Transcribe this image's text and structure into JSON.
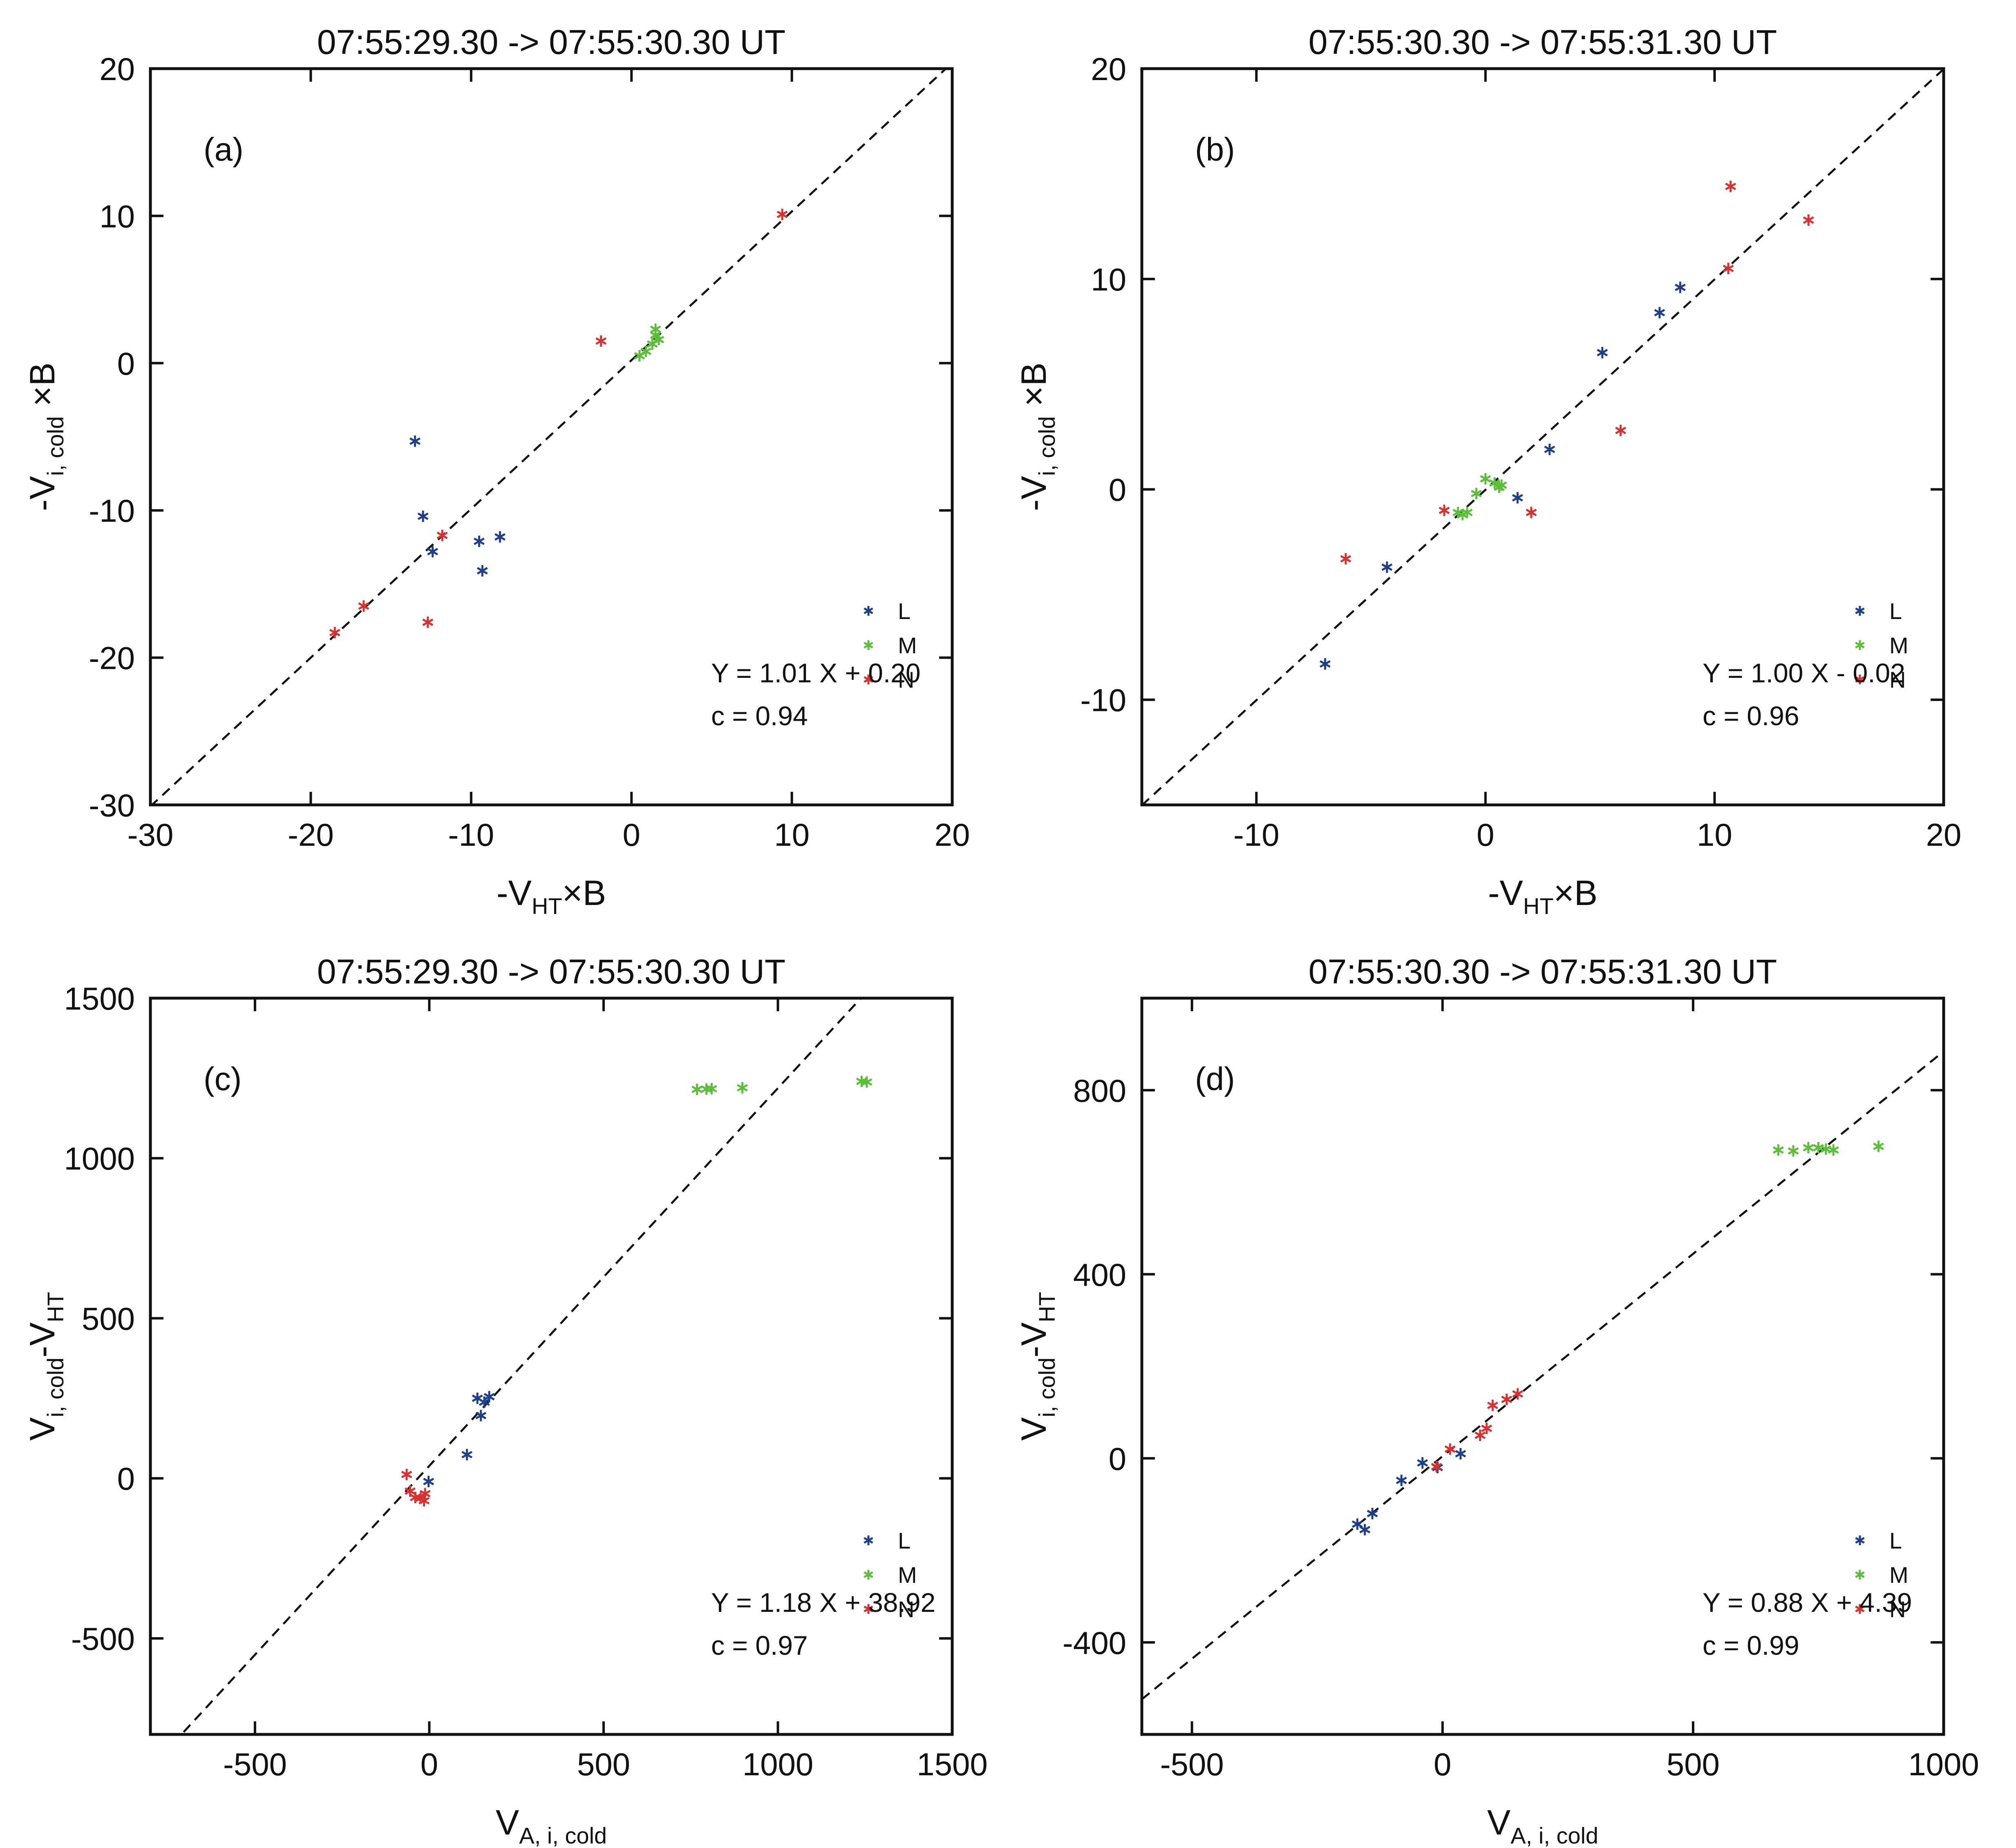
{
  "chart_data": [
    {
      "panel": "(a)",
      "type": "scatter",
      "title": "07:55:29.30 -> 07:55:30.30 UT",
      "xlabel": {
        "main": "-V",
        "sub": "HT",
        "suffix": "×B"
      },
      "ylabel": {
        "main": "-V",
        "sub": "i, cold",
        "suffix": "×B"
      },
      "xlim": [
        -30,
        20
      ],
      "ylim": [
        -30,
        20
      ],
      "xticks": [
        -30,
        -20,
        -10,
        0,
        10,
        20
      ],
      "yticks": [
        -30,
        -20,
        -10,
        0,
        10,
        20
      ],
      "xtick_labels": [
        "-30",
        "-20",
        "-10",
        "0",
        "10",
        "20"
      ],
      "ytick_labels": [
        "-30",
        "-20",
        "-10",
        "0",
        "10",
        "20"
      ],
      "fit": {
        "slope": 1.01,
        "intercept": 0.2
      },
      "equation": "Y = 1.01 X + 0.20",
      "corr": "c  = 0.94",
      "series": [
        {
          "name": "L",
          "color": "#1f3f8a",
          "points": [
            [
              -13.5,
              -5.3
            ],
            [
              -13,
              -10.4
            ],
            [
              -12.4,
              -12.8
            ],
            [
              -9.5,
              -12.1
            ],
            [
              -8.2,
              -11.8
            ],
            [
              -9.3,
              -14.1
            ]
          ]
        },
        {
          "name": "M",
          "color": "#5cbf3c",
          "points": [
            [
              0.5,
              0.5
            ],
            [
              0.9,
              0.8
            ],
            [
              1.3,
              1.3
            ],
            [
              1.5,
              1.9
            ],
            [
              1.5,
              2.3
            ],
            [
              1.7,
              1.6
            ]
          ]
        },
        {
          "name": "N",
          "color": "#d93030",
          "points": [
            [
              9.4,
              10.1
            ],
            [
              -1.9,
              1.5
            ],
            [
              -11.8,
              -11.7
            ],
            [
              -16.7,
              -16.5
            ],
            [
              -18.5,
              -18.3
            ],
            [
              -12.7,
              -17.6
            ]
          ]
        }
      ]
    },
    {
      "panel": "(b)",
      "type": "scatter",
      "title": "07:55:30.30 -> 07:55:31.30 UT",
      "xlabel": {
        "main": "-V",
        "sub": "HT",
        "suffix": "×B"
      },
      "ylabel": {
        "main": "-V",
        "sub": "i, cold",
        "suffix": "×B"
      },
      "xlim": [
        -15,
        20
      ],
      "ylim": [
        -15,
        20
      ],
      "xticks": [
        -10,
        0,
        10,
        20
      ],
      "yticks": [
        -10,
        0,
        10,
        20
      ],
      "xtick_labels": [
        "-10",
        "0",
        "10",
        "20"
      ],
      "ytick_labels": [
        "-10",
        "0",
        "10",
        "20"
      ],
      "fit": {
        "slope": 1.0,
        "intercept": -0.02
      },
      "equation": "Y = 1.00 X - 0.02",
      "corr": "c  = 0.96",
      "series": [
        {
          "name": "L",
          "color": "#1f3f8a",
          "points": [
            [
              -7,
              -8.3
            ],
            [
              -4.3,
              -3.7
            ],
            [
              1.4,
              -0.4
            ],
            [
              2.8,
              1.9
            ],
            [
              5.1,
              6.5
            ],
            [
              7.6,
              8.4
            ],
            [
              8.5,
              9.6
            ]
          ]
        },
        {
          "name": "M",
          "color": "#5cbf3c",
          "points": [
            [
              -1.2,
              -1.1
            ],
            [
              -1,
              -1.2
            ],
            [
              -0.8,
              -1.1
            ],
            [
              -0.4,
              -0.2
            ],
            [
              0,
              0.5
            ],
            [
              0.4,
              0.3
            ],
            [
              0.6,
              0.1
            ],
            [
              0.7,
              0.2
            ]
          ]
        },
        {
          "name": "N",
          "color": "#d93030",
          "points": [
            [
              -6.1,
              -3.3
            ],
            [
              -1.8,
              -1
            ],
            [
              2,
              -1.1
            ],
            [
              5.9,
              2.8
            ],
            [
              10.6,
              10.5
            ],
            [
              10.7,
              14.4
            ],
            [
              14.1,
              12.8
            ]
          ]
        }
      ]
    },
    {
      "panel": "(c)",
      "type": "scatter",
      "title": "07:55:29.30 -> 07:55:30.30 UT",
      "xlabel": {
        "main": "V",
        "sub": "A, i, cold",
        "suffix": ""
      },
      "ylabel": {
        "main": "V",
        "sub": "i, cold",
        "mid": "-V",
        "sub2": "HT"
      },
      "xlim": [
        -800,
        1500
      ],
      "ylim": [
        -800,
        1500
      ],
      "xticks": [
        -500,
        0,
        500,
        1000,
        1500
      ],
      "yticks": [
        -500,
        0,
        500,
        1000,
        1500
      ],
      "xtick_labels": [
        "-500",
        "0",
        "500",
        "1000",
        "1500"
      ],
      "ytick_labels": [
        "-500",
        "0",
        "500",
        "1000",
        "1500"
      ],
      "fit": {
        "slope": 1.18,
        "intercept": 38.92
      },
      "equation": "Y = 1.18 X + 38.92",
      "corr": "c  = 0.97",
      "series": [
        {
          "name": "L",
          "color": "#1f3f8a",
          "points": [
            [
              -2,
              -10
            ],
            [
              108,
              74
            ],
            [
              138,
              250
            ],
            [
              148,
              196
            ],
            [
              158,
              238
            ],
            [
              172,
              255
            ]
          ]
        },
        {
          "name": "M",
          "color": "#5cbf3c",
          "points": [
            [
              768,
              1215
            ],
            [
              795,
              1216
            ],
            [
              810,
              1217
            ],
            [
              898,
              1220
            ],
            [
              1240,
              1240
            ],
            [
              1255,
              1238
            ]
          ]
        },
        {
          "name": "N",
          "color": "#d93030",
          "points": [
            [
              -65,
              12
            ],
            [
              -55,
              -40
            ],
            [
              -40,
              -60
            ],
            [
              -25,
              -62
            ],
            [
              -15,
              -70
            ],
            [
              -12,
              -48
            ]
          ]
        }
      ]
    },
    {
      "panel": "(d)",
      "type": "scatter",
      "title": "07:55:30.30 -> 07:55:31.30 UT",
      "xlabel": {
        "main": "V",
        "sub": "A, i, cold",
        "suffix": ""
      },
      "ylabel": {
        "main": "V",
        "sub": "i, cold",
        "mid": "-V",
        "sub2": "HT"
      },
      "xlim": [
        -600,
        1000
      ],
      "ylim": [
        -600,
        1000
      ],
      "xticks": [
        -500,
        0,
        500,
        1000
      ],
      "yticks": [
        -400,
        0,
        400,
        800
      ],
      "xtick_labels": [
        "-500",
        "0",
        "500",
        "1000"
      ],
      "ytick_labels": [
        "-400",
        "0",
        "400",
        "800"
      ],
      "fit": {
        "slope": 0.88,
        "intercept": 4.39
      },
      "equation": "Y = 0.88 X + 4.39",
      "corr": "c  = 0.99",
      "series": [
        {
          "name": "L",
          "color": "#1f3f8a",
          "points": [
            [
              -170,
              -143
            ],
            [
              -155,
              -155
            ],
            [
              -140,
              -120
            ],
            [
              -82,
              -48
            ],
            [
              -40,
              -10
            ],
            [
              -10,
              -20
            ],
            [
              36,
              10
            ]
          ]
        },
        {
          "name": "M",
          "color": "#5cbf3c",
          "points": [
            [
              670,
              670
            ],
            [
              700,
              668
            ],
            [
              730,
              675
            ],
            [
              750,
              675
            ],
            [
              765,
              672
            ],
            [
              780,
              670
            ],
            [
              870,
              678
            ]
          ]
        },
        {
          "name": "N",
          "color": "#d93030",
          "points": [
            [
              -12,
              -18
            ],
            [
              15,
              20
            ],
            [
              75,
              50
            ],
            [
              88,
              65
            ],
            [
              100,
              115
            ],
            [
              128,
              128
            ],
            [
              150,
              140
            ]
          ]
        }
      ]
    }
  ]
}
